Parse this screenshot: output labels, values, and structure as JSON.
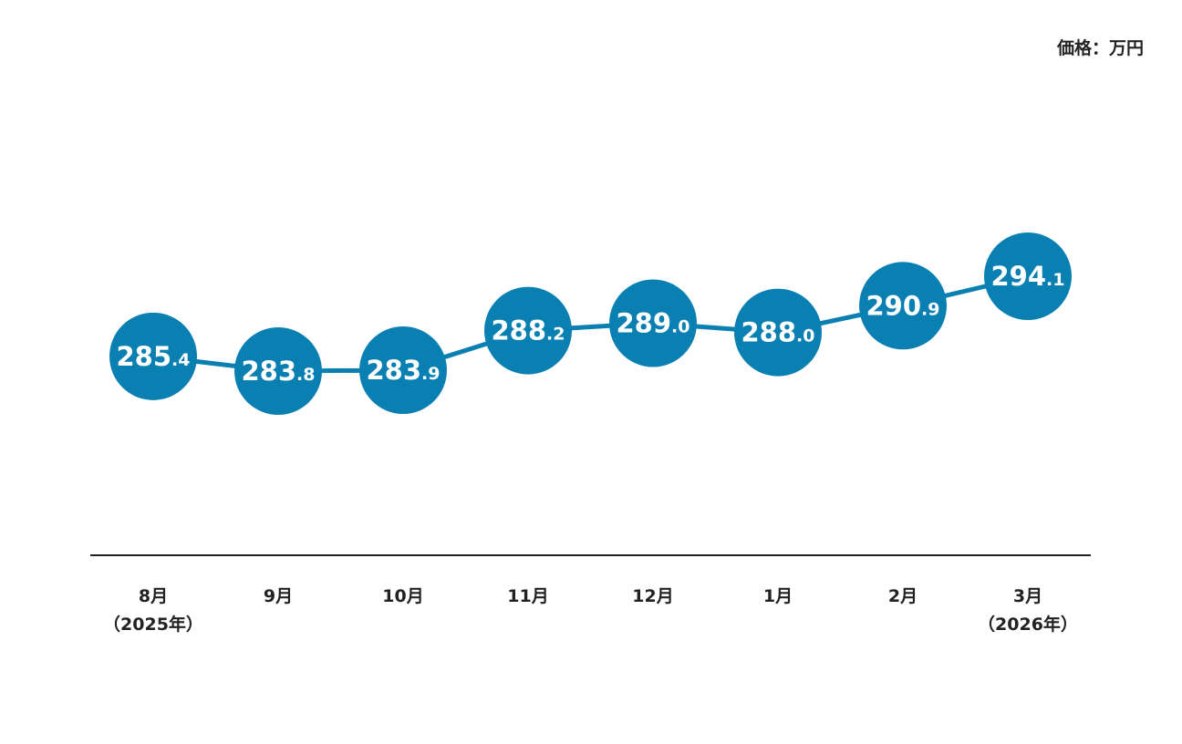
{
  "chart_data": {
    "type": "line",
    "unit_label": "価格：万円",
    "categories": [
      "8月\n（2025年）",
      "9月",
      "10月",
      "11月",
      "12月",
      "1月",
      "2月",
      "3月\n（2026年）"
    ],
    "values": [
      285.4,
      283.8,
      283.9,
      288.2,
      289.0,
      288.0,
      290.9,
      294.1
    ],
    "value_labels": [
      "285.4",
      "283.8",
      "283.9",
      "288.2",
      "289.0",
      "288.0",
      "290.9",
      "294.1"
    ],
    "color": "#0a80b2"
  }
}
